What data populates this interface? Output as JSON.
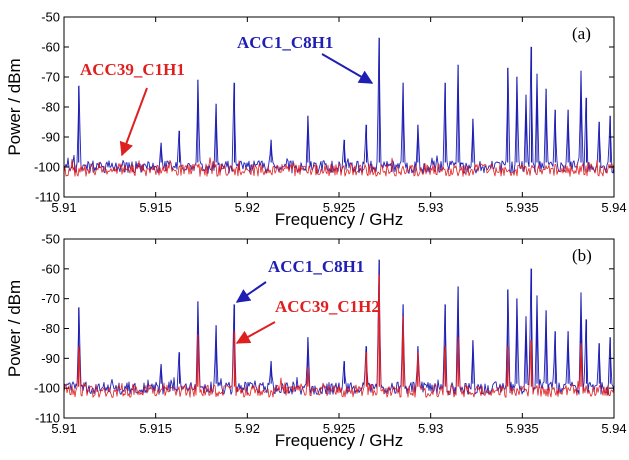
{
  "chart_data": [
    {
      "type": "line",
      "panel_label": "(a)",
      "xlabel": "Frequency / GHz",
      "ylabel": "Power / dBm",
      "xlim": [
        5.91,
        5.94
      ],
      "ylim": [
        -110,
        -50
      ],
      "x_ticks": [
        "5.91",
        "5.915",
        "5.92",
        "5.925",
        "5.93",
        "5.935",
        "5.94"
      ],
      "y_ticks": [
        "-50",
        "-60",
        "-70",
        "-80",
        "-90",
        "-100",
        "-110"
      ],
      "grid": false,
      "noise_floor": {
        "ACC1_C8H1": -100,
        "ACC39_C1H1": -101
      },
      "series": [
        {
          "name": "ACC1_C8H1",
          "color": "#1f1fb4",
          "peaks": [
            {
              "x": 5.9108,
              "y": -73
            },
            {
              "x": 5.9153,
              "y": -92
            },
            {
              "x": 5.9163,
              "y": -88
            },
            {
              "x": 5.9173,
              "y": -71
            },
            {
              "x": 5.9183,
              "y": -79
            },
            {
              "x": 5.9193,
              "y": -72
            },
            {
              "x": 5.9213,
              "y": -91
            },
            {
              "x": 5.9233,
              "y": -83
            },
            {
              "x": 5.9253,
              "y": -91
            },
            {
              "x": 5.9265,
              "y": -86
            },
            {
              "x": 5.9272,
              "y": -57
            },
            {
              "x": 5.9285,
              "y": -72
            },
            {
              "x": 5.9293,
              "y": -86
            },
            {
              "x": 5.9308,
              "y": -72
            },
            {
              "x": 5.9315,
              "y": -66
            },
            {
              "x": 5.9323,
              "y": -84
            },
            {
              "x": 5.9342,
              "y": -67
            },
            {
              "x": 5.9347,
              "y": -70
            },
            {
              "x": 5.9352,
              "y": -76
            },
            {
              "x": 5.9355,
              "y": -60
            },
            {
              "x": 5.9358,
              "y": -69
            },
            {
              "x": 5.9363,
              "y": -74
            },
            {
              "x": 5.9368,
              "y": -81
            },
            {
              "x": 5.9375,
              "y": -81
            },
            {
              "x": 5.9382,
              "y": -68
            },
            {
              "x": 5.9385,
              "y": -77
            },
            {
              "x": 5.9392,
              "y": -85
            },
            {
              "x": 5.9398,
              "y": -83
            }
          ]
        },
        {
          "name": "ACC39_C1H1",
          "color": "#e01f1f",
          "peaks": []
        }
      ],
      "annotations": [
        {
          "text": "ACC1_C8H1",
          "color": "#1f1fb4",
          "arrow_to": {
            "x": 5.9268,
            "y": -73
          }
        },
        {
          "text": "ACC39_C1H1",
          "color": "#e01f1f",
          "arrow_to": {
            "x": 5.9133,
            "y": -99
          }
        }
      ]
    },
    {
      "type": "line",
      "panel_label": "(b)",
      "xlabel": "Frequency / GHz",
      "ylabel": "Power / dBm",
      "xlim": [
        5.91,
        5.94
      ],
      "ylim": [
        -110,
        -50
      ],
      "x_ticks": [
        "5.91",
        "5.915",
        "5.92",
        "5.925",
        "5.93",
        "5.935",
        "5.94"
      ],
      "y_ticks": [
        "-50",
        "-60",
        "-70",
        "-80",
        "-90",
        "-100",
        "-110"
      ],
      "grid": false,
      "noise_floor": {
        "ACC1_C8H1": -100,
        "ACC39_C1H2": -101
      },
      "series": [
        {
          "name": "ACC1_C8H1",
          "color": "#1f1fb4",
          "peaks": [
            {
              "x": 5.9108,
              "y": -73
            },
            {
              "x": 5.9153,
              "y": -92
            },
            {
              "x": 5.9163,
              "y": -88
            },
            {
              "x": 5.9173,
              "y": -71
            },
            {
              "x": 5.9183,
              "y": -79
            },
            {
              "x": 5.9193,
              "y": -72
            },
            {
              "x": 5.9213,
              "y": -91
            },
            {
              "x": 5.9233,
              "y": -83
            },
            {
              "x": 5.9253,
              "y": -91
            },
            {
              "x": 5.9265,
              "y": -86
            },
            {
              "x": 5.9272,
              "y": -57
            },
            {
              "x": 5.9285,
              "y": -72
            },
            {
              "x": 5.9293,
              "y": -86
            },
            {
              "x": 5.9308,
              "y": -72
            },
            {
              "x": 5.9315,
              "y": -66
            },
            {
              "x": 5.9323,
              "y": -84
            },
            {
              "x": 5.9342,
              "y": -67
            },
            {
              "x": 5.9347,
              "y": -70
            },
            {
              "x": 5.9352,
              "y": -76
            },
            {
              "x": 5.9355,
              "y": -60
            },
            {
              "x": 5.9358,
              "y": -69
            },
            {
              "x": 5.9363,
              "y": -74
            },
            {
              "x": 5.9368,
              "y": -81
            },
            {
              "x": 5.9375,
              "y": -81
            },
            {
              "x": 5.9382,
              "y": -68
            },
            {
              "x": 5.9385,
              "y": -77
            },
            {
              "x": 5.9392,
              "y": -85
            },
            {
              "x": 5.9398,
              "y": -83
            }
          ]
        },
        {
          "name": "ACC39_C1H2",
          "color": "#e01f1f",
          "peaks": [
            {
              "x": 5.9108,
              "y": -86
            },
            {
              "x": 5.9173,
              "y": -82
            },
            {
              "x": 5.9193,
              "y": -81
            },
            {
              "x": 5.9233,
              "y": -93
            },
            {
              "x": 5.9265,
              "y": -88
            },
            {
              "x": 5.9272,
              "y": -62
            },
            {
              "x": 5.9285,
              "y": -76
            },
            {
              "x": 5.9293,
              "y": -88
            },
            {
              "x": 5.9308,
              "y": -86
            },
            {
              "x": 5.9315,
              "y": -83
            },
            {
              "x": 5.9342,
              "y": -86
            },
            {
              "x": 5.9355,
              "y": -84
            },
            {
              "x": 5.9382,
              "y": -85
            }
          ]
        }
      ],
      "annotations": [
        {
          "text": "ACC1_C8H1",
          "color": "#1f1fb4",
          "arrow_to": {
            "x": 5.9193,
            "y": -73
          }
        },
        {
          "text": "ACC39_C1H2",
          "color": "#e01f1f",
          "arrow_to": {
            "x": 5.9193,
            "y": -87
          }
        }
      ]
    }
  ]
}
